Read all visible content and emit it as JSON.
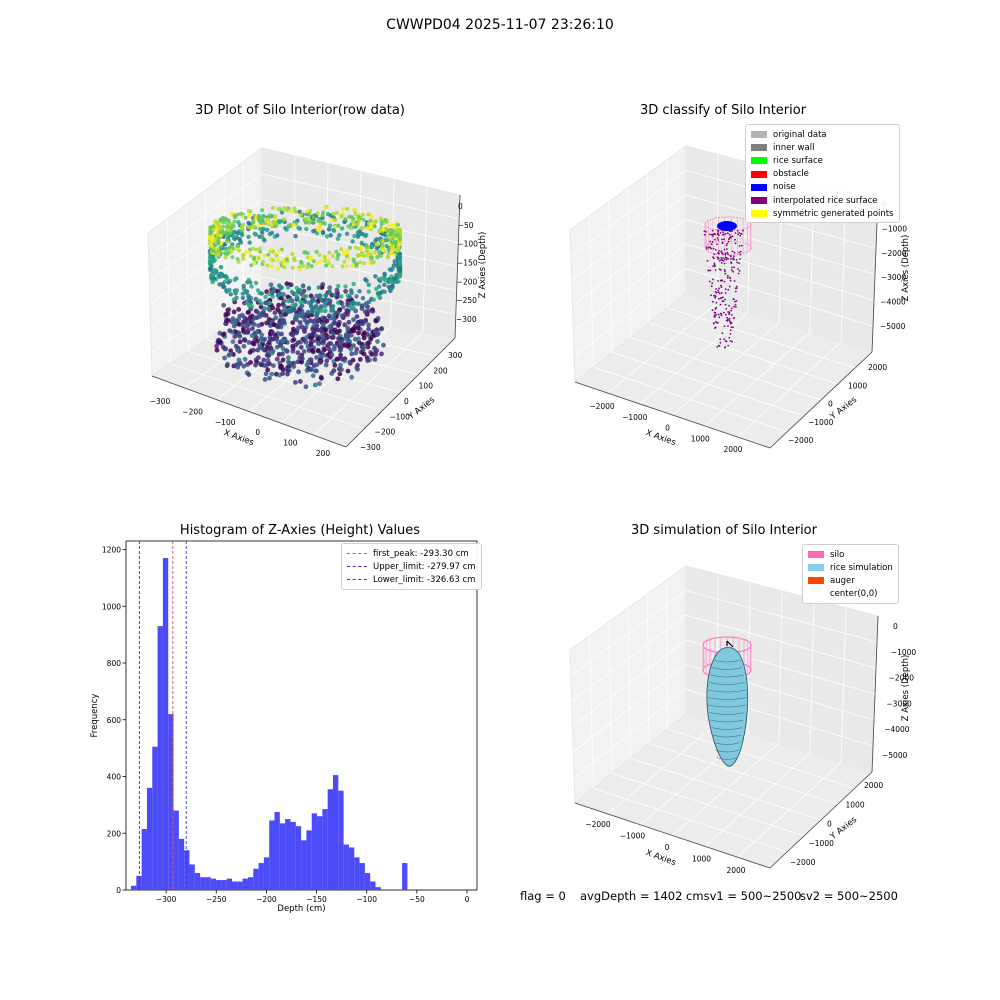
{
  "suptitle": "CWWPD04 2025-11-07 23:26:10",
  "status": {
    "flag": "flag = 0",
    "avg_depth": "avgDepth = 1402 cmsv1 = 500~2500",
    "sv2": "sv2 = 500~2500"
  },
  "colors": {
    "hist_bar": "#4b4bf7",
    "first_peak_line": "#e05050",
    "limit_line": "#3333cc",
    "silo": "#ff66b3",
    "rice_sim": "#7fc8de",
    "auger": "#ff4500",
    "interp": "#800080",
    "noise": "#0000ff"
  },
  "chart_data": [
    {
      "type": "scatter",
      "subtype": "3d",
      "title": "3D Plot of Silo Interior(row data)",
      "xlabel": "X Axies",
      "ylabel": "Y Axies",
      "zlabel": "Z Axies (Depth)",
      "x_ticks": [
        "−300",
        "−200",
        "−100",
        "0",
        "100",
        "200"
      ],
      "y_ticks": [
        "300",
        "200",
        "100",
        "0",
        "−100",
        "−200",
        "−300"
      ],
      "z_ticks": [
        "0",
        "−50",
        "−100",
        "−150",
        "−200",
        "−250",
        "−300"
      ],
      "colormap": "viridis"
    },
    {
      "type": "scatter",
      "subtype": "3d",
      "title": "3D classify of Silo Interior",
      "xlabel": "X Axies",
      "ylabel": "Y Axies",
      "zlabel": "Z Axies (Depth)",
      "x_ticks": [
        "−2000",
        "−1000",
        "0",
        "1000",
        "2000"
      ],
      "y_ticks": [
        "2000",
        "1000",
        "0",
        "−1000",
        "−2000"
      ],
      "z_ticks": [
        "0",
        "−1000",
        "−2000",
        "−3000",
        "−4000",
        "−5000"
      ],
      "legend": [
        {
          "label": "original data",
          "color": "#b3b3b3"
        },
        {
          "label": "inner wall",
          "color": "#808080"
        },
        {
          "label": "rice surface",
          "color": "#00ff00"
        },
        {
          "label": "obstacle",
          "color": "#ff0000"
        },
        {
          "label": "noise",
          "color": "#0000ff"
        },
        {
          "label": "interpolated rice surface",
          "color": "#800080"
        },
        {
          "label": "symmetric generated points",
          "color": "#ffff00"
        }
      ]
    },
    {
      "type": "bar",
      "subtype": "histogram",
      "title": "Histogram of Z-Axies (Height) Values",
      "xlabel": "Depth (cm)",
      "ylabel": "Frequency",
      "xlim": [
        -340,
        10
      ],
      "ylim": [
        0,
        1230
      ],
      "x_ticks": [
        -300,
        -250,
        -200,
        -150,
        -100,
        -50,
        0
      ],
      "y_ticks": [
        0,
        200,
        400,
        600,
        800,
        1000,
        1200
      ],
      "bin_width": 5.3,
      "bin_start": -335,
      "values": [
        15,
        50,
        215,
        360,
        505,
        930,
        1170,
        620,
        280,
        180,
        140,
        90,
        60,
        45,
        45,
        40,
        35,
        35,
        40,
        30,
        30,
        40,
        45,
        75,
        95,
        115,
        245,
        275,
        235,
        250,
        240,
        225,
        175,
        210,
        270,
        260,
        285,
        355,
        405,
        350,
        160,
        150,
        115,
        95,
        60,
        30,
        10,
        0,
        0,
        0,
        0,
        95
      ],
      "vlines": [
        {
          "name": "first_peak: -293.30 cm",
          "x": -293.3,
          "style": "first_peak"
        },
        {
          "name": "Upper_limit: -279.97 cm",
          "x": -279.97,
          "style": "limit"
        },
        {
          "name": "Lower_limit: -326.63 cm",
          "x": -326.63,
          "style": "limit"
        }
      ]
    },
    {
      "type": "scatter",
      "subtype": "3d-surface",
      "title": "3D simulation of Silo Interior",
      "xlabel": "X Axies",
      "ylabel": "Y Axies",
      "zlabel": "Z Axies (Depth)",
      "x_ticks": [
        "−2000",
        "−1000",
        "0",
        "1000",
        "2000"
      ],
      "y_ticks": [
        "2000",
        "1000",
        "0",
        "−1000",
        "−2000"
      ],
      "z_ticks": [
        "0",
        "−1000",
        "−2000",
        "−3000",
        "−4000",
        "−5000"
      ],
      "legend": [
        {
          "label": "silo",
          "color": "#ff69b4"
        },
        {
          "label": "rice simulation",
          "color": "#87ceeb"
        },
        {
          "label": "auger",
          "color": "#ff4500"
        },
        {
          "label": "center(0,0)",
          "color": ""
        }
      ]
    }
  ]
}
